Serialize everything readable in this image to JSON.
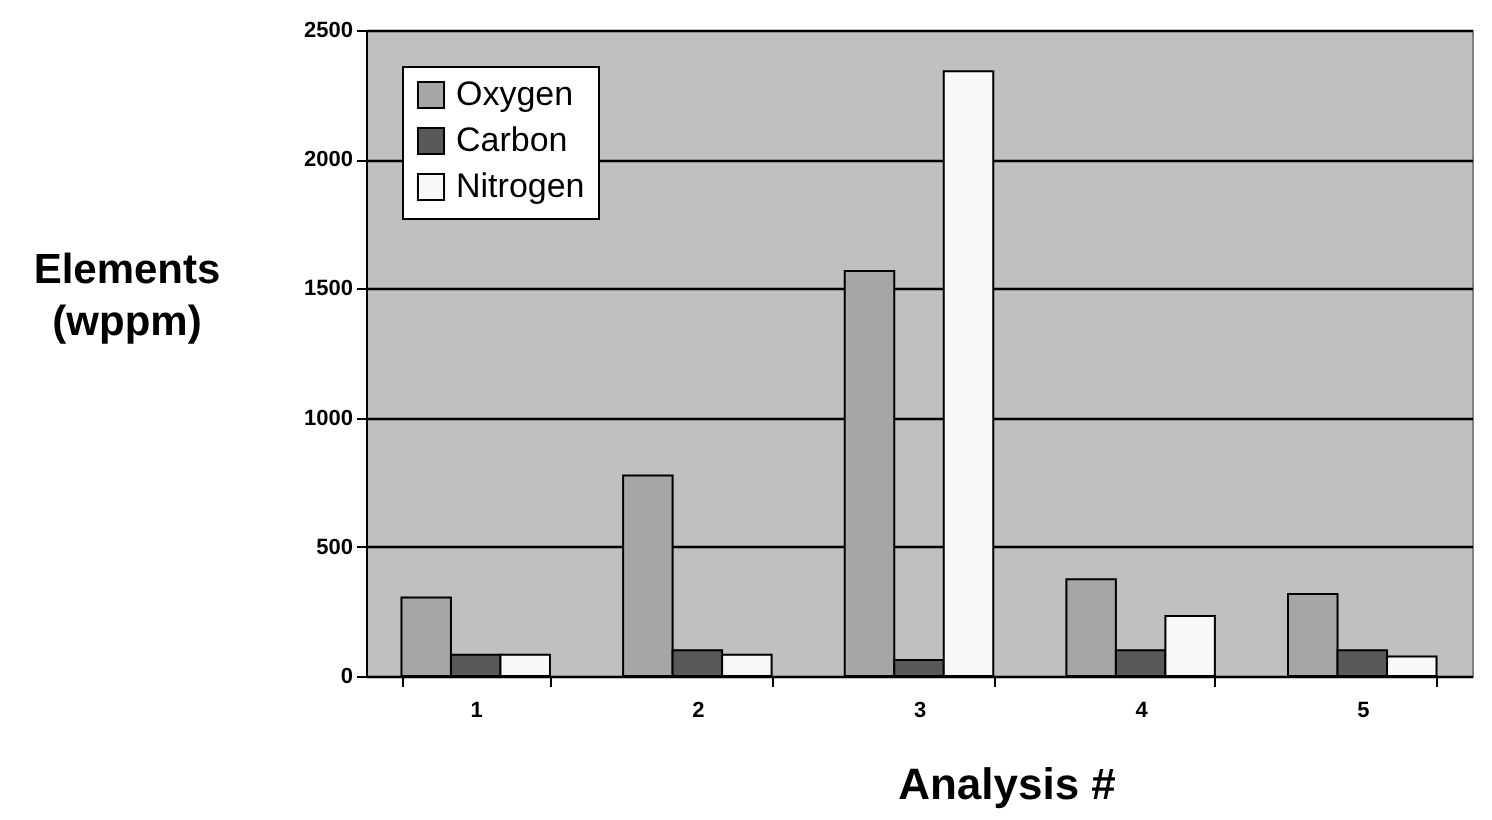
{
  "chart_data": {
    "type": "bar",
    "xlabel": "Analysis #",
    "ylabel": "Elements (wppm)",
    "categories": [
      "1",
      "2",
      "3",
      "4",
      "5"
    ],
    "series": [
      {
        "name": "Oxygen",
        "color": "#a6a6a6",
        "values": [
          304,
          776,
          1567,
          374,
          317
        ]
      },
      {
        "name": "Carbon",
        "color": "#595959",
        "values": [
          82,
          100,
          62,
          100,
          100
        ]
      },
      {
        "name": "Nitrogen",
        "color": "#f8f8f8",
        "values": [
          82,
          82,
          2340,
          232,
          75
        ]
      }
    ],
    "ylim": [
      0,
      2500
    ],
    "yticks": [
      0,
      500,
      1000,
      1500,
      2000,
      2500
    ],
    "grid": "y",
    "legend": "top left"
  }
}
